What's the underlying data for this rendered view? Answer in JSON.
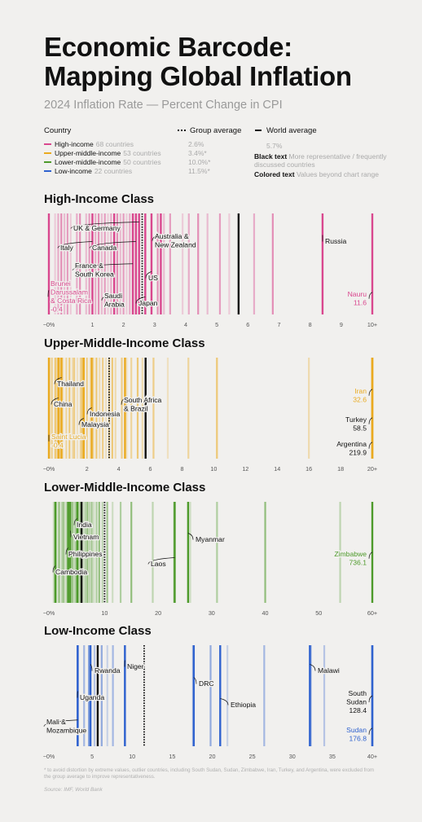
{
  "title": "Economic Barcode: Mapping Global Inflation",
  "subtitle": "2024 Inflation Rate — Percent Change in CPI",
  "legend": {
    "country_header": "Country",
    "group_avg_header": "Group average",
    "world_avg_header": "World average",
    "world_avg_value": "5.7%",
    "items": [
      {
        "label": "High-income",
        "count": "68 countries",
        "avg": "2.6%",
        "color": "#d9478e"
      },
      {
        "label": "Upper-middle-income",
        "count": "53 countries",
        "avg": "3.4%*",
        "color": "#eaaa1f"
      },
      {
        "label": "Lower-middle-income",
        "count": "50 countries",
        "avg": "10.0%*",
        "color": "#4d9a2a"
      },
      {
        "label": "Low-income",
        "count": "22 countries",
        "avg": "11.5%*",
        "color": "#2f62cf"
      }
    ],
    "black_text_label": "Black text",
    "black_text_desc": "More representative / frequently discussed countries",
    "colored_text_label": "Colored text",
    "colored_text_desc": "Values beyond chart range"
  },
  "footnote": "* to avoid distortion by extreme values, outlier countries, including South Sudan, Sudan, Zimbabwe, Iran, Turkey, and Argentina, were excluded from the group average to improve representativeness.",
  "source": "Source: IMF, World Bank",
  "chart_data": [
    {
      "type": "strip",
      "title": "High-Income Class",
      "color": "#d9478e",
      "xlim": [
        -0.4,
        10
      ],
      "ticks": [
        -0.4,
        1,
        2,
        3,
        4,
        5,
        6,
        7,
        8,
        9,
        10
      ],
      "tick_labels": [
        "−0%",
        "1",
        "2",
        "3",
        "4",
        "5",
        "6",
        "7",
        "8",
        "9",
        "10+"
      ],
      "group_avg": 2.6,
      "world_avg": 5.7,
      "values": [
        -0.2,
        -0.1,
        0,
        0.1,
        0.2,
        0.3,
        0.5,
        0.6,
        0.8,
        0.9,
        1.0,
        1.1,
        1.2,
        1.3,
        1.4,
        1.5,
        1.6,
        1.8,
        1.9,
        2.0,
        2.1,
        2.2,
        2.3,
        2.4,
        2.5,
        2.7,
        2.9,
        3.1,
        3.3,
        3.5,
        3.9,
        4.1,
        4.4,
        4.7,
        5.1,
        5.4,
        6.2,
        6.8
      ],
      "labeled": [
        {
          "name": "Brunei Darussalam & Costa Rica",
          "value": -0.4,
          "color": "#d9478e",
          "lines": [
            "Brunei",
            "Darussalam",
            "& Costa Rica",
            "-0.4"
          ]
        },
        {
          "name": "Italy",
          "value": 1.0,
          "lines": [
            "Italy"
          ]
        },
        {
          "name": "UK & Germany",
          "value": 2.5,
          "lines": [
            "UK & Germany"
          ]
        },
        {
          "name": "Canada",
          "value": 2.4,
          "lines": [
            "Canada"
          ]
        },
        {
          "name": "France & South Korea",
          "value": 2.3,
          "lines": [
            "France &",
            "South Korea"
          ]
        },
        {
          "name": "Saudi Arabia",
          "value": 1.7,
          "lines": [
            "Saudi",
            "Arabia"
          ]
        },
        {
          "name": "Japan",
          "value": 2.7,
          "lines": [
            "Japan"
          ]
        },
        {
          "name": "US",
          "value": 2.9,
          "lines": [
            "US"
          ]
        },
        {
          "name": "Australia & New Zealand",
          "value": 3.2,
          "lines": [
            "Australia &",
            "New Zealand"
          ]
        },
        {
          "name": "Russia",
          "value": 8.4,
          "lines": [
            "Russia"
          ]
        },
        {
          "name": "Nauru",
          "value": 11.6,
          "color": "#d9478e",
          "lines": [
            "Nauru",
            "11.6"
          ]
        }
      ]
    },
    {
      "type": "strip",
      "title": "Upper-Middle-Income Class",
      "color": "#eaaa1f",
      "xlim": [
        -0.4,
        20
      ],
      "ticks": [
        -0.4,
        2,
        4,
        6,
        8,
        10,
        12,
        14,
        16,
        18,
        20
      ],
      "tick_labels": [
        "−0%",
        "2",
        "4",
        "6",
        "8",
        "10",
        "12",
        "14",
        "16",
        "18",
        "20+"
      ],
      "group_avg": 3.4,
      "world_avg": 5.7,
      "values": [
        -0.3,
        -0.2,
        0,
        0.1,
        0.3,
        0.5,
        0.7,
        0.9,
        1.1,
        1.2,
        1.4,
        1.6,
        1.7,
        1.8,
        2.0,
        2.2,
        2.4,
        2.6,
        2.8,
        3.0,
        3.2,
        3.4,
        3.6,
        3.8,
        4.2,
        4.5,
        4.8,
        5.2,
        5.5,
        6.2,
        7.1,
        8.4,
        10.2,
        16.0
      ],
      "labeled": [
        {
          "name": "Saint Lucia",
          "value": -0.4,
          "color": "#eaaa1f",
          "lines": [
            "Saint Lucia",
            "-0.4"
          ]
        },
        {
          "name": "China",
          "value": 0.2,
          "lines": [
            "China"
          ]
        },
        {
          "name": "Thailand",
          "value": 0.4,
          "lines": [
            "Thailand"
          ]
        },
        {
          "name": "Indonesia",
          "value": 2.3,
          "lines": [
            "Indonesia"
          ]
        },
        {
          "name": "Malaysia",
          "value": 1.8,
          "lines": [
            "Malaysia"
          ]
        },
        {
          "name": "South Africa & Brazil",
          "value": 4.4,
          "lines": [
            "South Africa",
            "& Brazil"
          ]
        },
        {
          "name": "Iran",
          "value": 32.6,
          "color": "#eaaa1f",
          "lines": [
            "Iran",
            "32.6"
          ]
        },
        {
          "name": "Turkey",
          "value": 58.5,
          "lines": [
            "Turkey",
            "58.5"
          ]
        },
        {
          "name": "Argentina",
          "value": 219.9,
          "lines": [
            "Argentina",
            "219.9"
          ]
        }
      ]
    },
    {
      "type": "strip",
      "title": "Lower-Middle-Income Class",
      "color": "#4d9a2a",
      "xlim": [
        -0.4,
        60
      ],
      "ticks": [
        -0.4,
        10,
        20,
        30,
        40,
        50,
        60
      ],
      "tick_labels": [
        "−0%",
        "10",
        "20",
        "30",
        "40",
        "50",
        "60+"
      ],
      "group_avg": 10.0,
      "world_avg": 5.7,
      "values": [
        0.5,
        1.0,
        1.5,
        2.0,
        2.3,
        2.6,
        3.0,
        3.3,
        3.6,
        4.0,
        4.3,
        4.6,
        5.0,
        5.3,
        5.6,
        6.0,
        6.4,
        6.8,
        7.2,
        7.6,
        8.0,
        8.5,
        9.0,
        9.6,
        10.5,
        11.5,
        13.0,
        15.0,
        19.0,
        23.0,
        26.0,
        31.0,
        40.0,
        54.0
      ],
      "labeled": [
        {
          "name": "India",
          "value": 4.9,
          "lines": [
            "India"
          ]
        },
        {
          "name": "Vietnam",
          "value": 3.6,
          "lines": [
            "Vietnam"
          ]
        },
        {
          "name": "Philippines",
          "value": 3.2,
          "lines": [
            "Philippines"
          ]
        },
        {
          "name": "Cambodia",
          "value": 0.8,
          "lines": [
            "Cambodia"
          ]
        },
        {
          "name": "Laos",
          "value": 23.1,
          "lines": [
            "Laos"
          ]
        },
        {
          "name": "Myanmar",
          "value": 25.6,
          "lines": [
            "Myanmar"
          ]
        },
        {
          "name": "Zimbabwe",
          "value": 736.1,
          "color": "#4d9a2a",
          "lines": [
            "Zimbabwe",
            "736.1"
          ]
        }
      ]
    },
    {
      "type": "strip",
      "title": "Low-Income Class",
      "color": "#2f62cf",
      "xlim": [
        -0.4,
        40
      ],
      "ticks": [
        -0.4,
        5,
        10,
        15,
        20,
        25,
        30,
        35,
        40
      ],
      "tick_labels": [
        "−0%",
        "5",
        "10",
        "15",
        "20",
        "25",
        "30",
        "35",
        "40+"
      ],
      "group_avg": 11.5,
      "world_avg": 5.7,
      "values": [
        3.2,
        4.0,
        4.6,
        5.3,
        6.2,
        6.9,
        7.6,
        9.1,
        17.6,
        19.8,
        21.9,
        26.5,
        32.3,
        34.0
      ],
      "labeled": [
        {
          "name": "Rwanda",
          "value": 4.8,
          "lines": [
            "Rwanda"
          ]
        },
        {
          "name": "Niger",
          "value": 9.1,
          "lines": [
            "Niger"
          ]
        },
        {
          "name": "Uganda",
          "value": 3.2,
          "lines": [
            "Uganda"
          ]
        },
        {
          "name": "Mali & Mozambique",
          "value": 3.2,
          "lines": [
            "Mali &",
            "Mozambique"
          ]
        },
        {
          "name": "DRC",
          "value": 17.7,
          "lines": [
            "DRC"
          ]
        },
        {
          "name": "Ethiopia",
          "value": 21.0,
          "lines": [
            "Ethiopia"
          ]
        },
        {
          "name": "Malawi",
          "value": 32.2,
          "lines": [
            "Malawi"
          ]
        },
        {
          "name": "South Sudan",
          "value": 128.4,
          "lines": [
            "South",
            "Sudan",
            "128.4"
          ]
        },
        {
          "name": "Sudan",
          "value": 176.8,
          "color": "#2f62cf",
          "lines": [
            "Sudan",
            "176.8"
          ]
        }
      ]
    }
  ]
}
